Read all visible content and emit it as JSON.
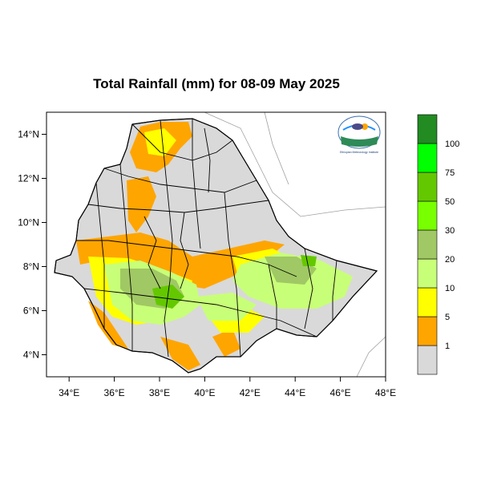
{
  "title": "Total Rainfall (mm) for 08-09 May 2025",
  "map": {
    "region": "Ethiopia",
    "lon_range": [
      33,
      48
    ],
    "lat_range": [
      3,
      15
    ],
    "x_ticks": [
      "34°E",
      "36°E",
      "38°E",
      "40°E",
      "42°E",
      "44°E",
      "46°E",
      "48°E"
    ],
    "y_ticks": [
      "14°N",
      "12°N",
      "10°N",
      "8°N",
      "6°N",
      "4°N"
    ]
  },
  "legend": {
    "labels": [
      "1",
      "5",
      "10",
      "20",
      "30",
      "50",
      "75",
      "100"
    ],
    "colors": [
      "#d9d9d9",
      "#ffa500",
      "#ffff00",
      "#c8ff78",
      "#a0c864",
      "#78ff00",
      "#64c800",
      "#00ff00",
      "#228b22"
    ]
  },
  "logo": {
    "name": "ethiopian-meteorology-institute-logo",
    "text": "Ethiopian Meteorology Institute"
  }
}
